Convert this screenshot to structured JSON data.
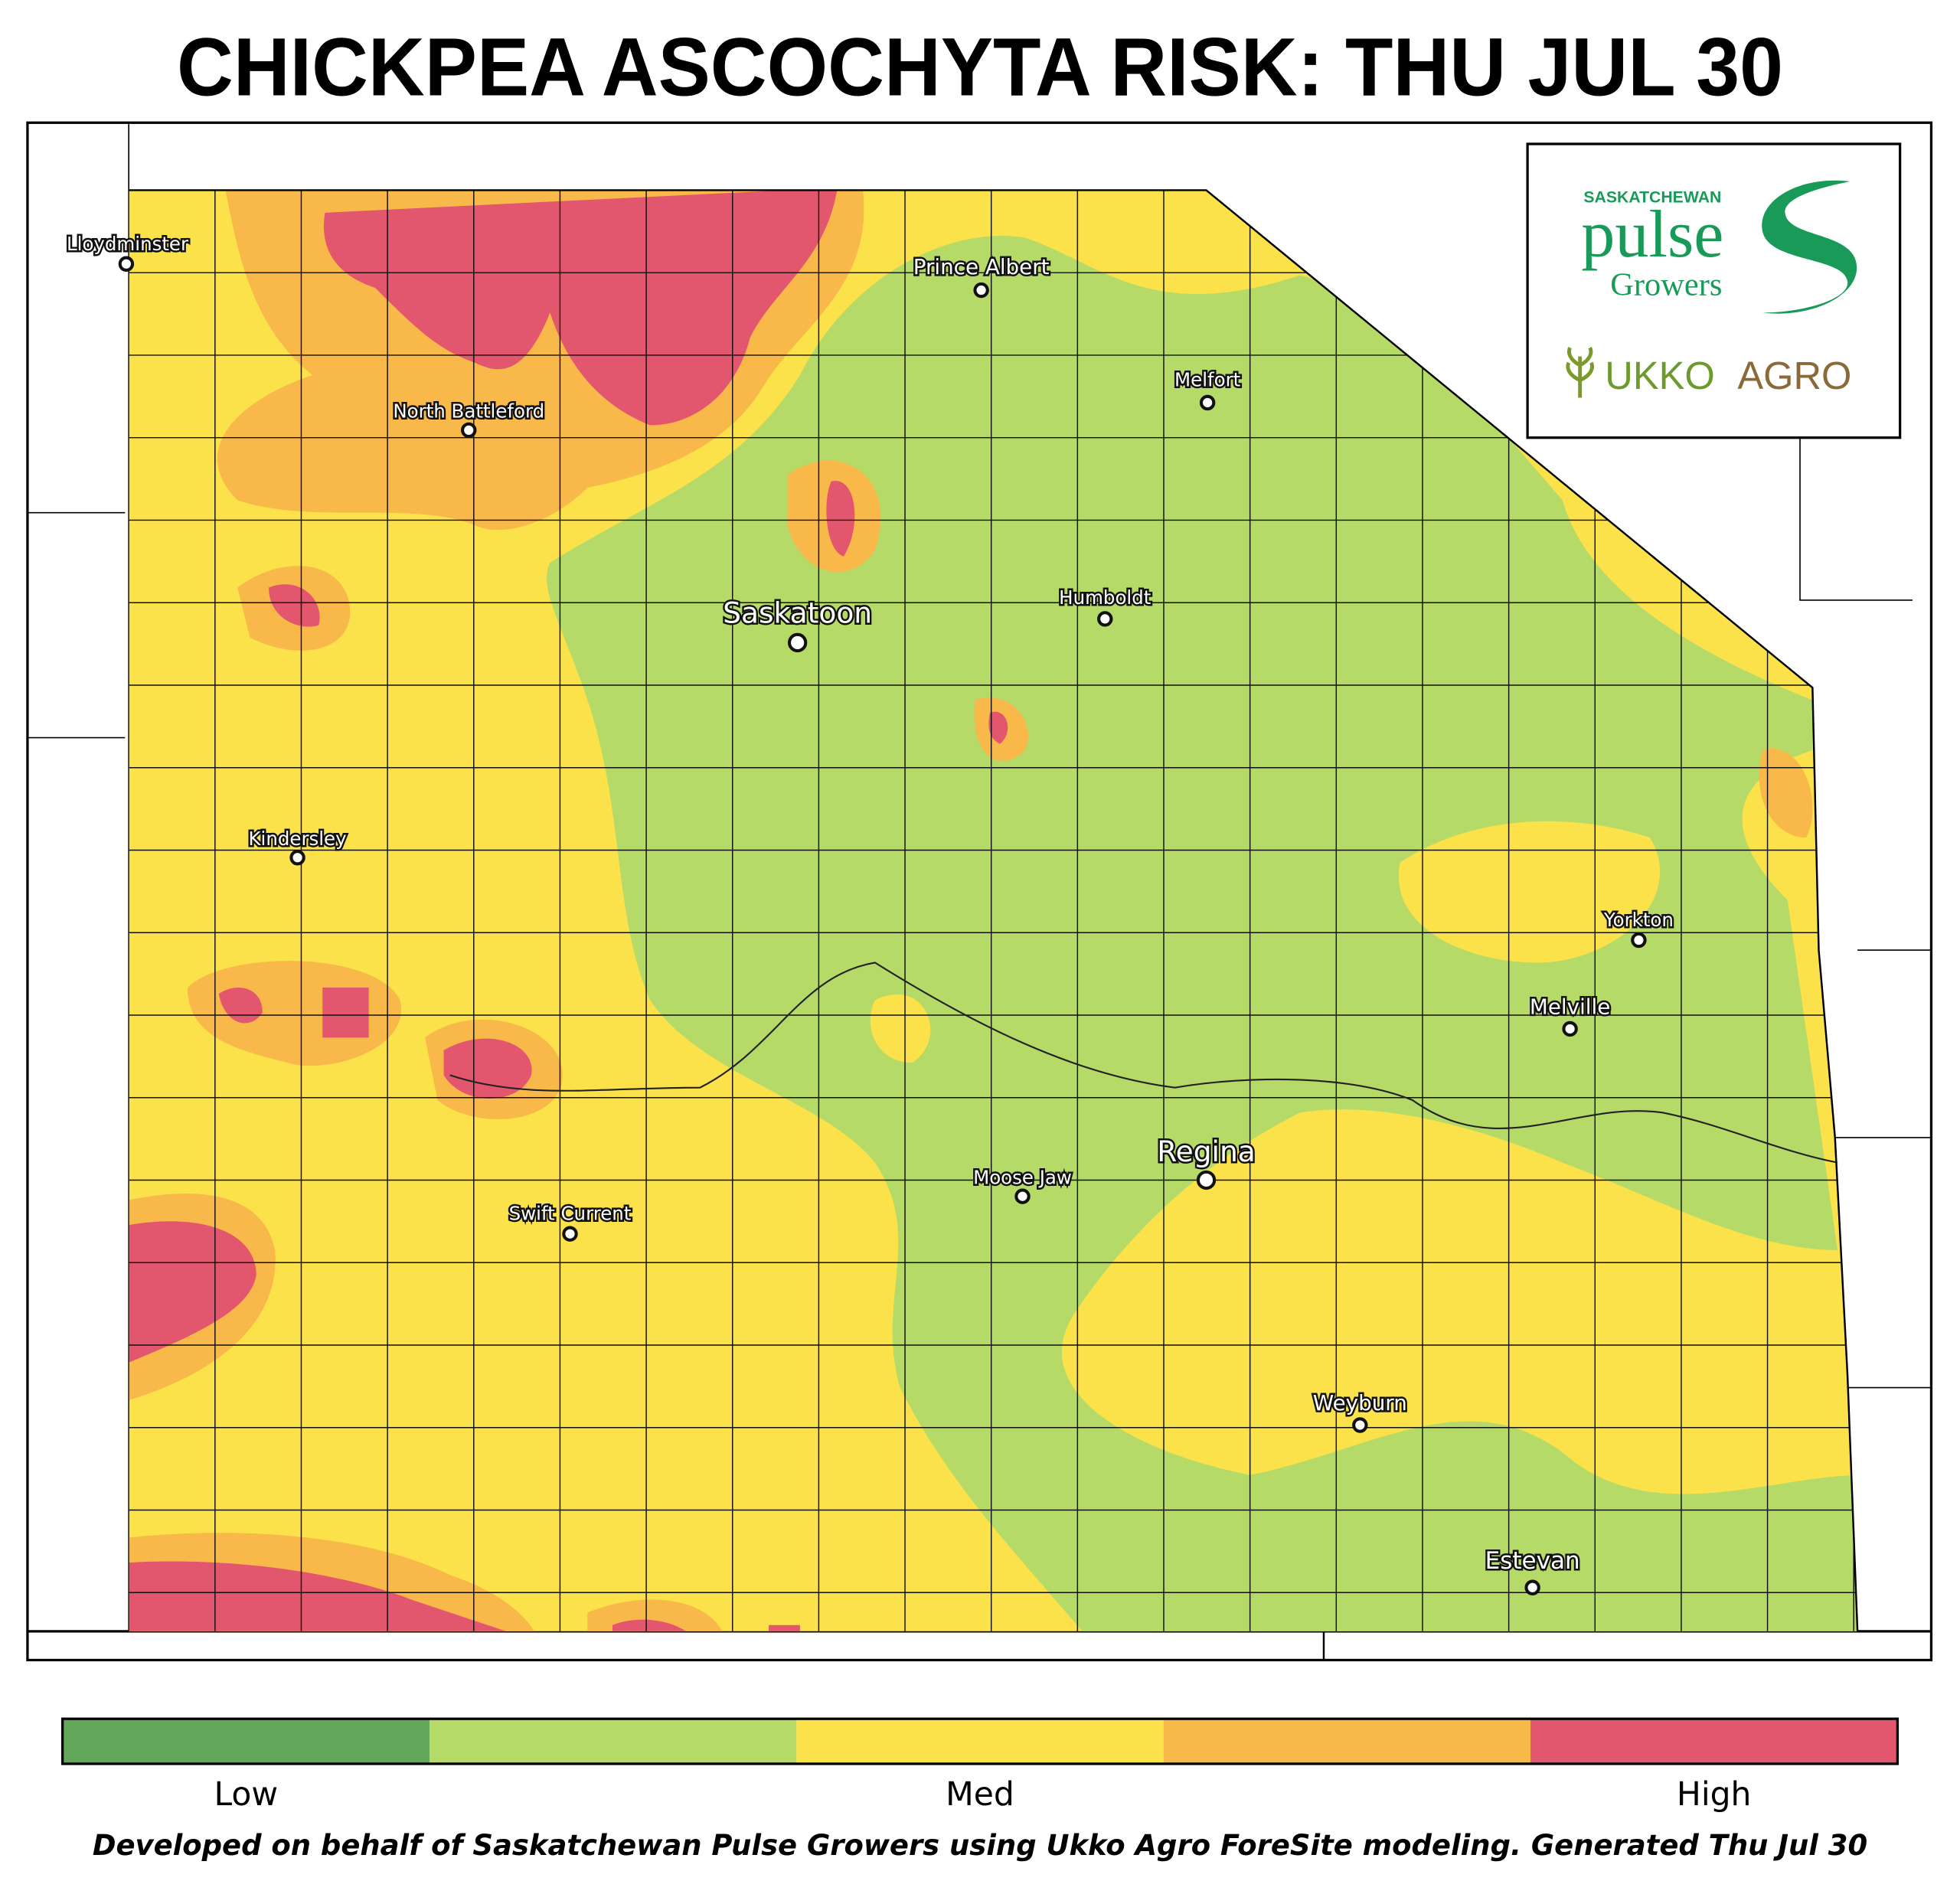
{
  "title": "CHICKPEA ASCOCHYTA RISK: THU JUL 30",
  "logo": {
    "org_top": "SASKATCHEWAN",
    "org_main": "pulse",
    "org_sub": "Growers",
    "partner_1": "UKKO",
    "partner_2": "AGRO"
  },
  "cities": [
    {
      "name": "Lloydminster"
    },
    {
      "name": "Prince Albert"
    },
    {
      "name": "Melfort"
    },
    {
      "name": "North Battleford"
    },
    {
      "name": "Saskatoon"
    },
    {
      "name": "Humboldt"
    },
    {
      "name": "Kindersley"
    },
    {
      "name": "Yorkton"
    },
    {
      "name": "Melville"
    },
    {
      "name": "Regina"
    },
    {
      "name": "Moose Jaw"
    },
    {
      "name": "Swift Current"
    },
    {
      "name": "Weyburn"
    },
    {
      "name": "Estevan"
    }
  ],
  "legend": {
    "colors": [
      "#63a85a",
      "#b6da67",
      "#fbe14a",
      "#f9b84a",
      "#e2566e"
    ],
    "labels": [
      "Low",
      "Med",
      "High"
    ]
  },
  "footer": "Developed on behalf of Saskatchewan Pulse Growers using Ukko Agro ForeSite modeling. Generated Thu Jul 30"
}
